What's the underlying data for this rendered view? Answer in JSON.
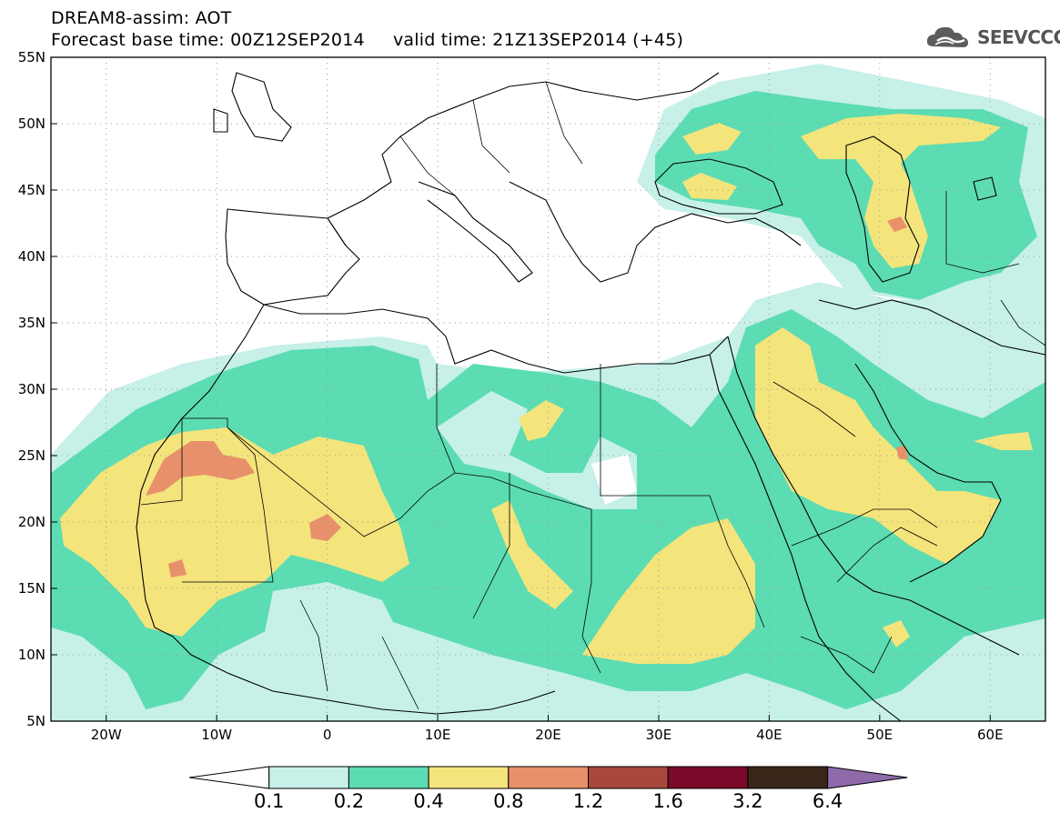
{
  "header": {
    "line1": "DREAM8-assim: AOT",
    "line2": "Forecast base time: 00Z12SEP2014     valid time: 21Z13SEP2014 (+45)"
  },
  "logo": {
    "text": "SEEVCCC",
    "icon": "cloud-icon",
    "color": "#666666"
  },
  "map": {
    "lon_range": [
      -25,
      65
    ],
    "lat_range": [
      5,
      55
    ],
    "grid": "dotted",
    "lon_labels": [
      "20W",
      "10W",
      "0",
      "10E",
      "20E",
      "30E",
      "40E",
      "50E",
      "60E"
    ],
    "lat_labels": [
      "55N",
      "50N",
      "45N",
      "40N",
      "35N",
      "30N",
      "25N",
      "20N",
      "15N",
      "10N",
      "5N"
    ]
  },
  "colorbar": {
    "labels": [
      "0.1",
      "0.2",
      "0.4",
      "0.8",
      "1.2",
      "1.6",
      "3.2",
      "6.4"
    ],
    "colors": [
      "#ffffff",
      "#c6f0e8",
      "#5cdcb2",
      "#f4e47c",
      "#e8906a",
      "#a8473c",
      "#7a0a2a",
      "#3a2618",
      "#8e6aaa"
    ]
  }
}
